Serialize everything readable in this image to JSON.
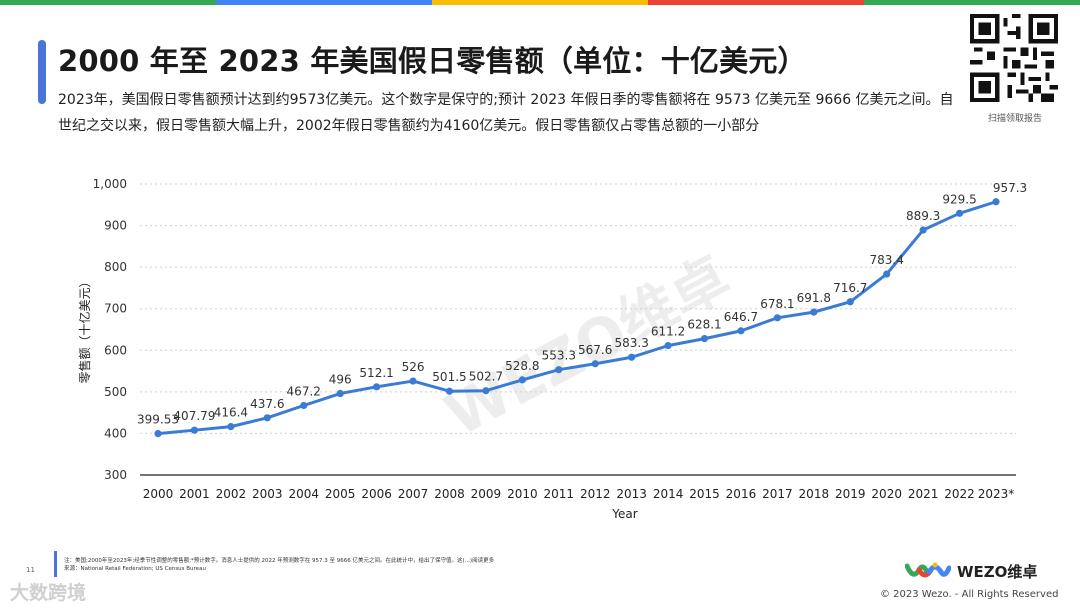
{
  "header": {
    "title": "2000 年至 2023 年美国假日零售额（单位：十亿美元）",
    "subtitle": "2023年，美国假日零售额预计达到约9573亿美元。这个数字是保守的;预计 2023 年假日季的零售额将在 9573 亿美元至 9666 亿美元之间。自世纪之交以来，假日零售额大幅上升，2002年假日零售额约为4160亿美元。假日零售额仅占零售总额的一小部分",
    "qr_caption": "扫描领取报告"
  },
  "colors": {
    "accent": "#4a74d9",
    "line": "#3a7bd5",
    "topbar": [
      "#34a853",
      "#4285f4",
      "#fbbc05",
      "#ea4335"
    ]
  },
  "chart_data": {
    "type": "line",
    "xlabel": "Year",
    "ylabel": "零售额（十亿美元）",
    "ylim": [
      300,
      1000
    ],
    "yticks": [
      300,
      400,
      500,
      600,
      700,
      800,
      900,
      1000
    ],
    "ytick_labels": [
      "300",
      "400",
      "500",
      "600",
      "700",
      "800",
      "900",
      "1,000"
    ],
    "grid": true,
    "categories": [
      "2000",
      "2001",
      "2002",
      "2003",
      "2004",
      "2005",
      "2006",
      "2007",
      "2008",
      "2009",
      "2010",
      "2011",
      "2012",
      "2013",
      "2014",
      "2015",
      "2016",
      "2017",
      "2018",
      "2019",
      "2020",
      "2021",
      "2022",
      "2023*"
    ],
    "values": [
      399.53,
      407.79,
      416.4,
      437.6,
      467.2,
      496,
      512.1,
      526,
      501.5,
      502.7,
      528.8,
      553.3,
      567.6,
      583.3,
      611.2,
      628.1,
      646.7,
      678.1,
      691.8,
      716.7,
      783.4,
      889.3,
      929.5,
      957.3
    ],
    "labels": [
      "399.53",
      "407.79",
      "416.4",
      "437.6",
      "467.2",
      "496",
      "512.1",
      "526",
      "501.5",
      "502.7",
      "528.8",
      "553.3",
      "567.6",
      "583.3",
      "611.2",
      "628.1",
      "646.7",
      "678.1",
      "691.8",
      "716.7",
      "783.4",
      "889.3",
      "929.5",
      "957.3"
    ]
  },
  "watermark": "WEZO维卓",
  "footer": {
    "note_line1": "注：美国;2000年至2023年;经季节性调整的零售额;*预计数字。消息人士提供的 2022 年预测数字在 957.3 至 9666 亿美元之间。在此统计中，给出了保守值。这(...)阅读更多",
    "note_line2": "来源：National Retail Federation; US Census Bureau",
    "page_number": "11",
    "bottom_watermark": "大数跨境",
    "logo_text": "WEZO维卓",
    "copyright": "© 2023 Wezo. - All Rights Reserved"
  }
}
